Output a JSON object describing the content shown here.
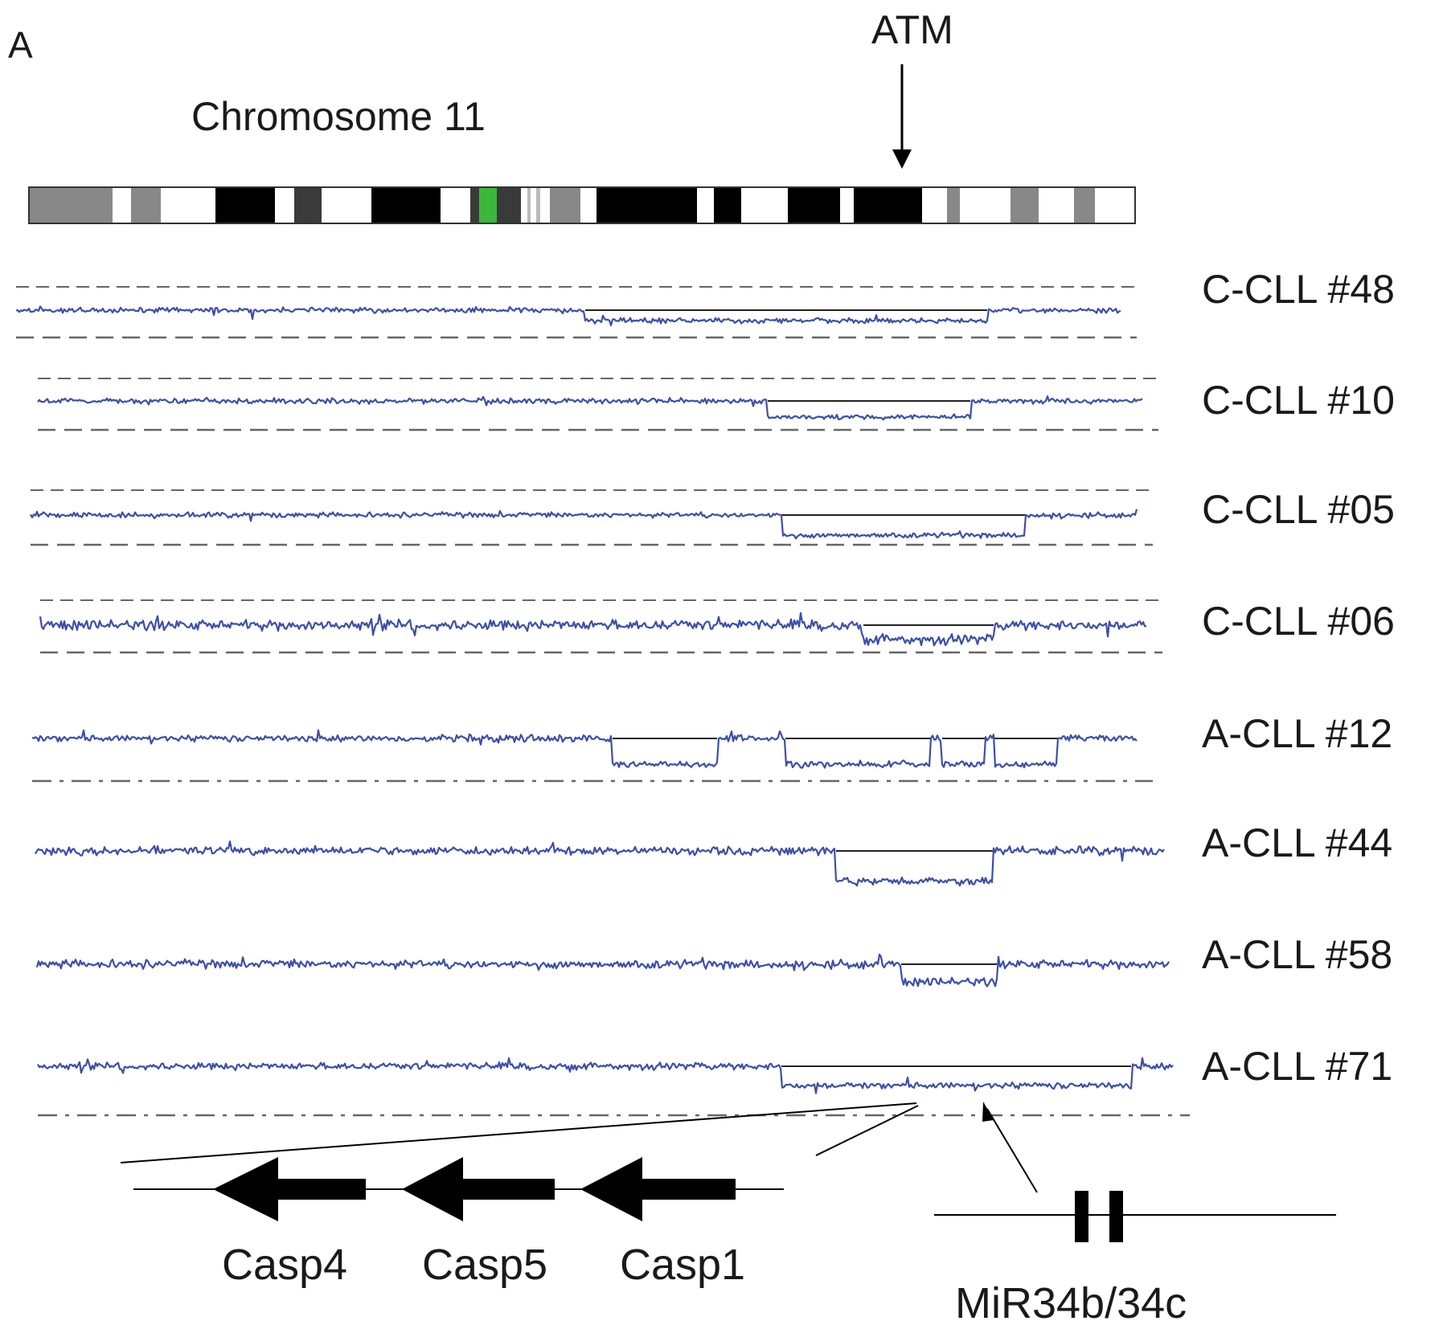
{
  "panel_label": "A",
  "chromosome_title": "Chromosome 11",
  "marker_label": "ATM",
  "ideogram": {
    "colors": {
      "outline": "#333333",
      "dark": "#000000",
      "mid": "#3a3a3a",
      "gray": "#888888",
      "light": "#bbbbbb",
      "centromere": "#3cb73c"
    }
  },
  "samples": [
    {
      "label": "C-CLL #48",
      "has_upper_reference": true,
      "lower_reference_style": "dash"
    },
    {
      "label": "C-CLL #10",
      "has_upper_reference": true,
      "lower_reference_style": "dash"
    },
    {
      "label": "C-CLL #05",
      "has_upper_reference": true,
      "lower_reference_style": "dash"
    },
    {
      "label": "C-CLL #06",
      "has_upper_reference": true,
      "lower_reference_style": "dash"
    },
    {
      "label": "A-CLL #12",
      "has_upper_reference": false,
      "lower_reference_style": "dash-dot"
    },
    {
      "label": "A-CLL #44",
      "has_upper_reference": false,
      "lower_reference_style": "none"
    },
    {
      "label": "A-CLL #58",
      "has_upper_reference": false,
      "lower_reference_style": "none"
    },
    {
      "label": "A-CLL #71",
      "has_upper_reference": false,
      "lower_reference_style": "dash-dot"
    }
  ],
  "genes": [
    {
      "name": "Casp4"
    },
    {
      "name": "Casp5"
    },
    {
      "name": "Casp1"
    }
  ],
  "mirna_label": "MiR34b/34c",
  "colors": {
    "trace": "#3c4fa8",
    "segment": "#222222",
    "reference": "#666666",
    "text": "#1a1a1a"
  }
}
